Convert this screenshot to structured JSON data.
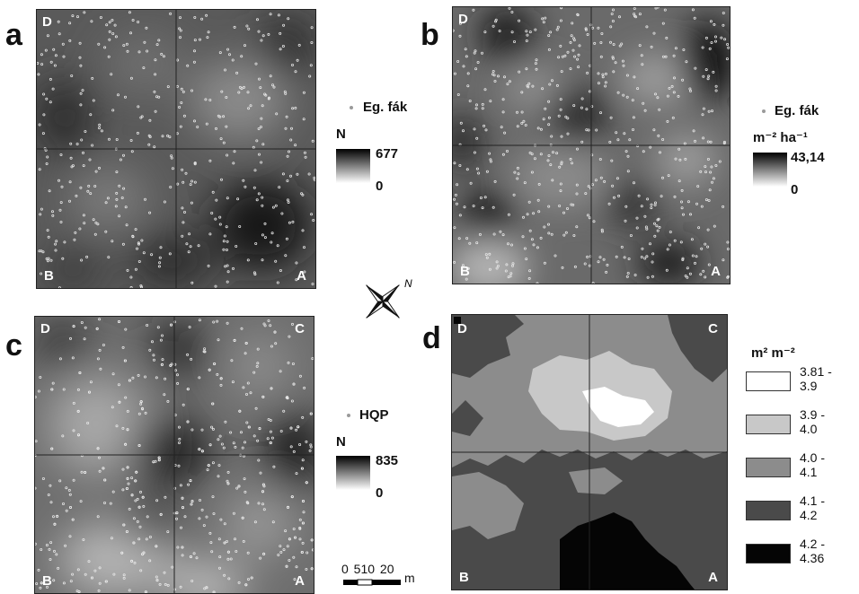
{
  "panels": {
    "a": {
      "letter": "a",
      "corners": {
        "top_left": "D",
        "bottom_left": "B",
        "bottom_right": "A"
      },
      "legend": {
        "point_label": "Eg. fák",
        "unit": "N",
        "max": "677",
        "min": "0"
      }
    },
    "b": {
      "letter": "b",
      "corners": {
        "top_left": "D",
        "bottom_left": "B",
        "bottom_right": "A"
      },
      "legend": {
        "point_label": "Eg. fák",
        "unit": "m⁻² ha⁻¹",
        "max": "43,14",
        "min": "0"
      }
    },
    "c": {
      "letter": "c",
      "corners": {
        "top_left": "D",
        "top_right": "C",
        "bottom_left": "B",
        "bottom_right": "A"
      },
      "legend": {
        "point_label": "HQP",
        "unit": "N",
        "max": "835",
        "min": "0"
      }
    },
    "d": {
      "letter": "d",
      "corners": {
        "top_left": "D",
        "top_right": "C",
        "bottom_left": "B",
        "bottom_right": "A"
      },
      "legend": {
        "unit": "m² m⁻²",
        "classes": [
          {
            "label": "3.81 -\n3.9",
            "color": "#ffffff"
          },
          {
            "label": "3.9 -\n4.0",
            "color": "#c8c8c8"
          },
          {
            "label": "4.0 -\n4.1",
            "color": "#8c8c8c"
          },
          {
            "label": "4.1 -\n4.2",
            "color": "#4a4a4a"
          },
          {
            "label": "4.2 -\n4.36",
            "color": "#050505"
          }
        ]
      }
    }
  },
  "scale_bar": {
    "labels": "0 510  20",
    "unit": "m"
  },
  "north_arrow": {
    "letter": "N",
    "icon": "north-arrow-icon"
  }
}
